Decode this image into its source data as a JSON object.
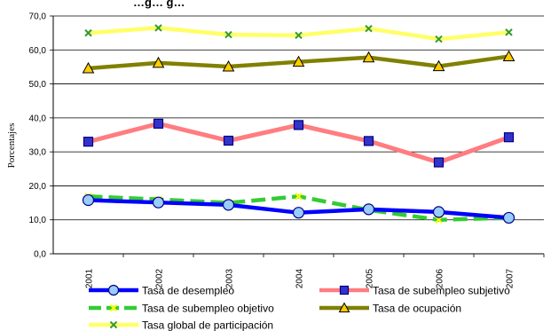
{
  "chart_data": {
    "type": "line",
    "title_fragment": "…g… g…",
    "ylabel": "Porcentajes",
    "xlabel": "",
    "ylim": [
      0,
      70
    ],
    "yticks": [
      "0,0",
      "10,0",
      "20,0",
      "30,0",
      "40,0",
      "50,0",
      "60,0",
      "70,0"
    ],
    "categories": [
      "2001",
      "2002",
      "2003",
      "2004",
      "2005",
      "2006",
      "2007"
    ],
    "grid": true,
    "legend_position": "bottom",
    "series": [
      {
        "name": "Tasa de desempleo",
        "color": "#0000ff",
        "marker": "circle",
        "marker_fill": "#99ccff",
        "dash": "solid",
        "values": [
          15.8,
          15.1,
          14.4,
          12.1,
          13.1,
          12.3,
          10.6
        ]
      },
      {
        "name": "Tasa de subempleo subjetivo",
        "color": "#ff7c80",
        "marker": "square",
        "marker_fill": "#3333cc",
        "dash": "solid",
        "values": [
          33.0,
          38.3,
          33.3,
          37.9,
          33.2,
          26.9,
          34.3
        ]
      },
      {
        "name": "Tasa de subempleo objetivo",
        "color": "#33cc33",
        "marker": "x",
        "marker_fill": "#ffff00",
        "dash": "dashed",
        "values": [
          16.9,
          16.0,
          15.0,
          16.9,
          12.9,
          10.0,
          10.6
        ]
      },
      {
        "name": "Tasa de ocupación",
        "color": "#808000",
        "marker": "triangle",
        "marker_fill": "#ffcc00",
        "dash": "solid",
        "values": [
          54.6,
          56.2,
          55.1,
          56.5,
          57.8,
          55.2,
          58.1
        ]
      },
      {
        "name": "Tasa global de participación",
        "color": "#ffff66",
        "marker": "x",
        "marker_fill": "#339933",
        "dash": "solid",
        "values": [
          65.0,
          66.5,
          64.5,
          64.3,
          66.3,
          63.2,
          65.2
        ]
      }
    ]
  }
}
